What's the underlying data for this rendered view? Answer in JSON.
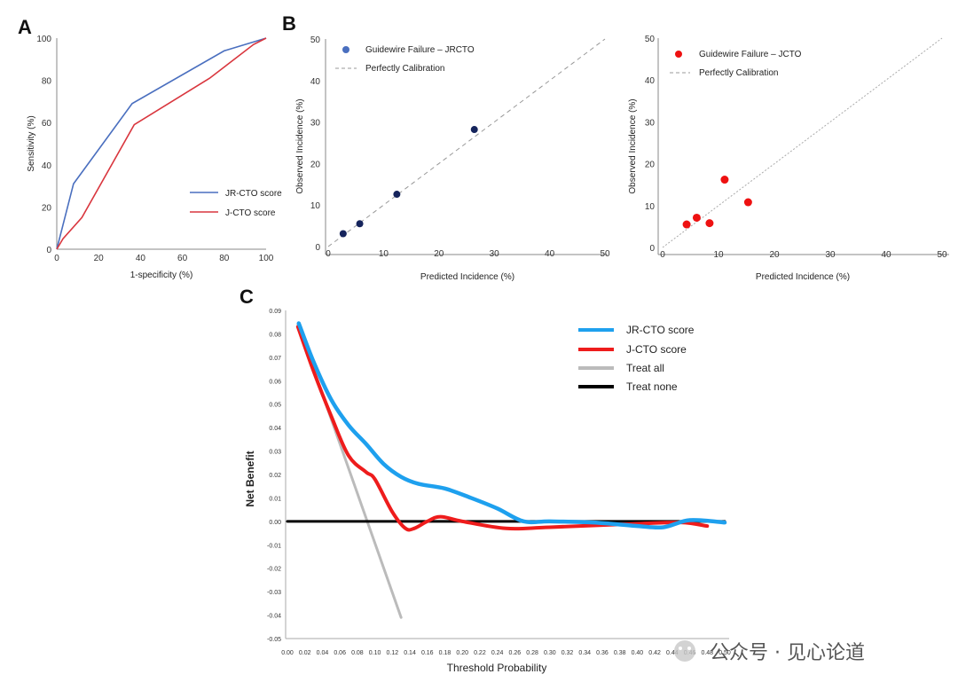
{
  "panels": {
    "a": "A",
    "b": "B",
    "c": "C"
  },
  "colors": {
    "blue": "#4a6fbf",
    "red": "#d9363e",
    "navy": "#15245c",
    "bright_red": "#ee1111",
    "cyan": "#1ea0ee",
    "dcred": "#ee1c1c",
    "gray": "#bbbbbb",
    "black": "#000000"
  },
  "watermark": "公众号 · 见心论道",
  "chart_data": [
    {
      "id": "roc",
      "type": "line",
      "title": "",
      "xlabel": "1-specificity (%)",
      "ylabel": "Sensitivity (%)",
      "xlim": [
        0,
        100
      ],
      "ylim": [
        0,
        100
      ],
      "xticks": [
        "0",
        "20",
        "40",
        "60",
        "80",
        "100"
      ],
      "yticks": [
        "0",
        "20",
        "40",
        "60",
        "80",
        "100"
      ],
      "series": [
        {
          "name": "JR-CTO score",
          "x": [
            0,
            8,
            36,
            80,
            100
          ],
          "y": [
            0,
            31,
            69,
            94,
            100
          ]
        },
        {
          "name": "J-CTO score",
          "x": [
            0,
            3,
            12,
            37,
            73,
            94,
            100
          ],
          "y": [
            0,
            5,
            15,
            59,
            81,
            97,
            100
          ]
        }
      ],
      "legend_position": "lower-right"
    },
    {
      "id": "calib_jr",
      "type": "scatter",
      "xlabel": "Predicted Incidence (%)",
      "ylabel": "Observed Incidence (%)",
      "xlim": [
        0,
        50
      ],
      "ylim": [
        0,
        50
      ],
      "xticks": [
        "0",
        "10",
        "20",
        "30",
        "40",
        "50"
      ],
      "yticks": [
        "0",
        "10",
        "20",
        "30",
        "40",
        "50"
      ],
      "series": [
        {
          "name": "Guidewire Failure – JRCTO",
          "x": [
            2.7,
            5.7,
            12.4,
            26.4
          ],
          "y": [
            3.1,
            5.5,
            12.6,
            28.2
          ]
        }
      ],
      "reference_line": "Perfectly Calibration",
      "legend_position": "top-left"
    },
    {
      "id": "calib_j",
      "type": "scatter",
      "xlabel": "Predicted Incidence (%)",
      "ylabel": "Observed Incidence (%)",
      "xlim": [
        0,
        50
      ],
      "ylim": [
        0,
        50
      ],
      "xticks": [
        "0",
        "10",
        "20",
        "30",
        "40",
        "50"
      ],
      "yticks": [
        "0",
        "10",
        "20",
        "30",
        "40",
        "50"
      ],
      "series": [
        {
          "name": "Guidewire Failure – JCTO",
          "x": [
            4.3,
            6.1,
            8.4,
            11.1,
            15.3
          ],
          "y": [
            5.5,
            7.1,
            5.8,
            16.2,
            10.8
          ]
        }
      ],
      "reference_line": "Perfectly Calibration",
      "legend_position": "top-left"
    },
    {
      "id": "dca",
      "type": "line",
      "xlabel": "Threshold Probability",
      "ylabel": "Net Benefit",
      "xlim": [
        0,
        0.5
      ],
      "ylim": [
        -0.05,
        0.09
      ],
      "xticks": [
        "0.00",
        "0.02",
        "0.04",
        "0.06",
        "0.08",
        "0.10",
        "0.12",
        "0.14",
        "0.16",
        "0.18",
        "0.20",
        "0.22",
        "0.24",
        "0.26",
        "0.28",
        "0.30",
        "0.32",
        "0.34",
        "0.36",
        "0.38",
        "0.40",
        "0.42",
        "0.44",
        "0.46",
        "0.48",
        "0.50"
      ],
      "yticks": [
        "0.09",
        "0.08",
        "0.07",
        "0.06",
        "0.05",
        "0.04",
        "0.03",
        "0.02",
        "0.01",
        "0.00",
        "-0.01",
        "-0.02",
        "-0.03",
        "-0.04",
        "-0.05"
      ],
      "series": [
        {
          "name": "JR-CTO score",
          "x": [
            0.013,
            0.03,
            0.05,
            0.07,
            0.09,
            0.11,
            0.13,
            0.15,
            0.18,
            0.21,
            0.24,
            0.27,
            0.3,
            0.35,
            0.4,
            0.43,
            0.46,
            0.5
          ],
          "y": [
            0.0845,
            0.068,
            0.052,
            0.041,
            0.033,
            0.0245,
            0.019,
            0.016,
            0.014,
            0.01,
            0.0055,
            0.0,
            0.0,
            -0.0005,
            -0.002,
            -0.0025,
            0.0005,
            -0.0005
          ]
        },
        {
          "name": "J-CTO score",
          "x": [
            0.012,
            0.03,
            0.05,
            0.07,
            0.09,
            0.1,
            0.12,
            0.135,
            0.145,
            0.16,
            0.175,
            0.2,
            0.25,
            0.3,
            0.4,
            0.45,
            0.48
          ],
          "y": [
            0.083,
            0.064,
            0.045,
            0.028,
            0.021,
            0.018,
            0.004,
            -0.003,
            -0.003,
            0.0,
            0.002,
            0.0,
            -0.003,
            -0.0025,
            -0.001,
            -0.0005,
            -0.002
          ]
        },
        {
          "name": "Treat all",
          "x": [
            0.012,
            0.13
          ],
          "y": [
            0.084,
            -0.041
          ]
        },
        {
          "name": "Treat none",
          "x": [
            0.0,
            0.5
          ],
          "y": [
            0.0,
            0.0
          ]
        }
      ],
      "legend_position": "top-right"
    }
  ]
}
